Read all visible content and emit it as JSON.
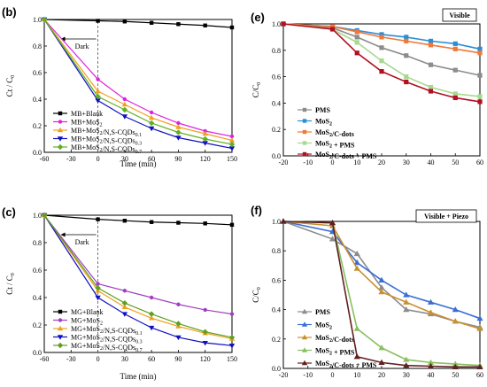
{
  "chart_data": [
    {
      "panel_label": "(b)",
      "type": "line",
      "xlabel": "Time (min)",
      "ylabel": "Ct / C0",
      "xlim": [
        -60,
        150
      ],
      "ylim": [
        0,
        1.0
      ],
      "xticks": [
        -60,
        -30,
        0,
        30,
        60,
        90,
        120,
        150
      ],
      "yticks": [
        0.0,
        0.2,
        0.4,
        0.6,
        0.8,
        1.0
      ],
      "x": [
        -60,
        0,
        30,
        60,
        90,
        120,
        150
      ],
      "annotation": "Dark",
      "legend": "bottom-left",
      "grid": false,
      "series": [
        {
          "name": "MB+Blank",
          "color": "#000000",
          "marker": "square",
          "values": [
            1.0,
            0.99,
            0.985,
            0.975,
            0.965,
            0.955,
            0.94
          ]
        },
        {
          "name": "MB+MoS2",
          "color": "#e020e0",
          "marker": "circle",
          "values": [
            1.0,
            0.55,
            0.4,
            0.3,
            0.22,
            0.16,
            0.12
          ]
        },
        {
          "name": "MB+MoS2/N,S-CQDs0.1",
          "color": "#f0a020",
          "marker": "triangle-up",
          "values": [
            1.0,
            0.46,
            0.36,
            0.26,
            0.19,
            0.14,
            0.09
          ]
        },
        {
          "name": "MB+MoS2/N,S-CQDs0.3",
          "color": "#1010c0",
          "marker": "triangle-down",
          "values": [
            1.0,
            0.39,
            0.27,
            0.18,
            0.11,
            0.07,
            0.03
          ]
        },
        {
          "name": "MB+MoS2/N,S-CQDs0.7",
          "color": "#60b020",
          "marker": "diamond",
          "values": [
            1.0,
            0.42,
            0.32,
            0.22,
            0.15,
            0.1,
            0.06
          ]
        }
      ]
    },
    {
      "panel_label": "(c)",
      "type": "line",
      "xlabel": "Time (min)",
      "ylabel": "Ct / C0",
      "xlim": [
        -60,
        150
      ],
      "ylim": [
        0,
        1.0
      ],
      "xticks": [
        -60,
        -30,
        0,
        30,
        60,
        90,
        120,
        150
      ],
      "yticks": [
        0.0,
        0.2,
        0.4,
        0.6,
        0.8,
        1.0
      ],
      "x": [
        -60,
        0,
        30,
        60,
        90,
        120,
        150
      ],
      "annotation": "Dark",
      "legend": "bottom-left",
      "grid": false,
      "series": [
        {
          "name": "MG+Blank",
          "color": "#000000",
          "marker": "square",
          "values": [
            1.0,
            0.97,
            0.96,
            0.95,
            0.945,
            0.94,
            0.93
          ]
        },
        {
          "name": "MG+MoS2",
          "color": "#a040c0",
          "marker": "circle",
          "values": [
            1.0,
            0.5,
            0.45,
            0.4,
            0.35,
            0.31,
            0.28
          ]
        },
        {
          "name": "MG+MoS2/N,S-CQDs0.1",
          "color": "#f0a020",
          "marker": "triangle-up",
          "values": [
            1.0,
            0.45,
            0.33,
            0.25,
            0.19,
            0.14,
            0.1
          ]
        },
        {
          "name": "MG+MoS2/N,S-CQDs0.3",
          "color": "#1010c0",
          "marker": "triangle-down",
          "values": [
            1.0,
            0.4,
            0.28,
            0.18,
            0.11,
            0.07,
            0.05
          ]
        },
        {
          "name": "MG+MoS2/N,S-CQDs0.7",
          "color": "#60a020",
          "marker": "diamond",
          "values": [
            1.0,
            0.47,
            0.36,
            0.28,
            0.21,
            0.15,
            0.11
          ]
        }
      ]
    },
    {
      "panel_label": "(e)",
      "type": "line",
      "tag": "Visible",
      "xlabel": "",
      "ylabel": "C/C0",
      "xlim": [
        -20,
        60
      ],
      "ylim": [
        0,
        1.0
      ],
      "xticks": [
        -20,
        -10,
        0,
        10,
        20,
        30,
        40,
        50,
        60
      ],
      "yticks": [
        0.0,
        0.2,
        0.4,
        0.6,
        0.8,
        1.0
      ],
      "x": [
        -20,
        0,
        10,
        20,
        30,
        40,
        50,
        60
      ],
      "legend": "bottom-left",
      "grid": false,
      "series": [
        {
          "name": "PMS",
          "color": "#8c8c8c",
          "marker": "square",
          "values": [
            1.0,
            0.97,
            0.9,
            0.82,
            0.76,
            0.69,
            0.65,
            0.61
          ]
        },
        {
          "name": "MoS2",
          "color": "#2a8ed6",
          "marker": "square",
          "values": [
            1.0,
            0.98,
            0.95,
            0.92,
            0.9,
            0.87,
            0.85,
            0.81
          ]
        },
        {
          "name": "MoS2/C-dots",
          "color": "#f07838",
          "marker": "square",
          "values": [
            1.0,
            0.98,
            0.94,
            0.9,
            0.87,
            0.84,
            0.81,
            0.78
          ]
        },
        {
          "name": "MoS2 + PMS",
          "color": "#a8d890",
          "marker": "square",
          "values": [
            1.0,
            0.96,
            0.86,
            0.72,
            0.6,
            0.52,
            0.47,
            0.45
          ]
        },
        {
          "name": "MoS2/C-dots + PMS",
          "color": "#b01020",
          "marker": "square",
          "values": [
            1.0,
            0.96,
            0.78,
            0.64,
            0.56,
            0.49,
            0.44,
            0.41
          ]
        }
      ]
    },
    {
      "panel_label": "(f)",
      "type": "line",
      "tag": "Visible + Piezo",
      "xlabel": "",
      "ylabel": "C/C0",
      "xlim": [
        -20,
        60
      ],
      "ylim": [
        0,
        1.0
      ],
      "xticks": [
        -20,
        -10,
        0,
        10,
        20,
        30,
        40,
        50,
        60
      ],
      "yticks": [
        0.0,
        0.2,
        0.4,
        0.6,
        0.8,
        1.0
      ],
      "x": [
        -20,
        0,
        10,
        20,
        30,
        40,
        50,
        60
      ],
      "legend": "bottom-left",
      "grid": false,
      "series": [
        {
          "name": "PMS",
          "color": "#8c8c8c",
          "marker": "triangle-up",
          "values": [
            1.0,
            0.88,
            0.78,
            0.55,
            0.4,
            0.37,
            0.32,
            0.28
          ]
        },
        {
          "name": "MoS2",
          "color": "#3a6ed6",
          "marker": "triangle-up",
          "values": [
            1.0,
            0.93,
            0.72,
            0.6,
            0.5,
            0.45,
            0.4,
            0.34
          ]
        },
        {
          "name": "MoS2/C-dots",
          "color": "#c89030",
          "marker": "triangle-up",
          "values": [
            1.0,
            0.97,
            0.68,
            0.52,
            0.45,
            0.38,
            0.32,
            0.27
          ]
        },
        {
          "name": "MoS2 + PMS",
          "color": "#88c060",
          "marker": "triangle-up",
          "values": [
            1.0,
            0.99,
            0.27,
            0.14,
            0.06,
            0.04,
            0.03,
            0.02
          ]
        },
        {
          "name": "MoS2/C-dots + PMS",
          "color": "#602020",
          "marker": "triangle-up",
          "values": [
            1.0,
            0.99,
            0.08,
            0.04,
            0.02,
            0.015,
            0.01,
            0.01
          ]
        }
      ]
    }
  ]
}
